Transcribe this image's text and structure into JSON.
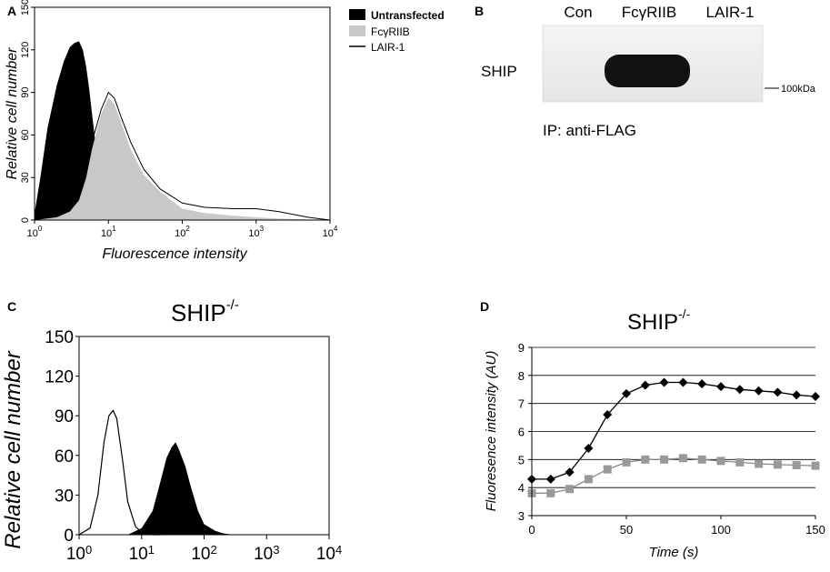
{
  "panels": {
    "a": "A",
    "b": "B",
    "c": "C",
    "d": "D"
  },
  "chart_data": [
    {
      "panel": "A",
      "type": "area",
      "xlabel": "Fluorescence intensity",
      "ylabel": "Relative cell number",
      "xscale": "log",
      "xlim": [
        1,
        10000
      ],
      "ylim": [
        0,
        150
      ],
      "xticks": [
        "10^0",
        "10^1",
        "10^2",
        "10^3",
        "10^4"
      ],
      "yticks": [
        "0",
        "30",
        "60",
        "90",
        "120",
        "150"
      ],
      "legend_position": "top-right",
      "series": [
        {
          "name": "Untransfected",
          "color": "#000000",
          "style": "filled",
          "x": [
            1,
            1.2,
            1.5,
            2,
            2.5,
            3,
            3.5,
            4,
            4.5,
            5,
            5.5,
            6,
            7,
            8,
            10,
            12
          ],
          "y": [
            5,
            30,
            65,
            95,
            112,
            122,
            125,
            126,
            120,
            108,
            92,
            75,
            45,
            22,
            6,
            0
          ]
        },
        {
          "name": "FcγRIIB",
          "color": "#c8c8c8",
          "style": "filled",
          "x": [
            1,
            2,
            3,
            4,
            5,
            6,
            8,
            10,
            12,
            15,
            20,
            30,
            50,
            100,
            200,
            500,
            1000,
            2000,
            5000,
            10000
          ],
          "y": [
            0,
            2,
            6,
            14,
            30,
            50,
            75,
            86,
            82,
            68,
            50,
            32,
            20,
            8,
            5,
            3,
            2,
            1,
            0.5,
            0
          ]
        },
        {
          "name": "LAIR-1",
          "color": "#000000",
          "style": "line",
          "x": [
            1,
            2,
            3,
            4,
            5,
            6,
            8,
            10,
            12,
            15,
            20,
            30,
            50,
            100,
            200,
            500,
            1000,
            2000,
            5000,
            10000
          ],
          "y": [
            0,
            3,
            8,
            18,
            35,
            55,
            78,
            90,
            86,
            72,
            55,
            36,
            22,
            12,
            9,
            8,
            8,
            6,
            2,
            0
          ]
        }
      ]
    },
    {
      "panel": "B",
      "type": "blot",
      "lanes": [
        "Con",
        "FcγRIIB",
        "LAIR-1"
      ],
      "row_label": "SHIP",
      "marker": "100kDa",
      "caption": "IP: anti-FLAG",
      "band_intensity": [
        0,
        1,
        0
      ]
    },
    {
      "panel": "C",
      "type": "area",
      "title": "SHIP",
      "title_sup": "-/-",
      "ylabel": "Relative cell number",
      "xscale": "log",
      "xlim": [
        1,
        10000
      ],
      "ylim": [
        0,
        150
      ],
      "xticks": [
        "10^0",
        "10^1",
        "10^2",
        "10^3",
        "10^4"
      ],
      "yticks": [
        "0",
        "30",
        "60",
        "90",
        "120",
        "150"
      ],
      "series": [
        {
          "name": "",
          "color": "#000000",
          "style": "line",
          "x": [
            1,
            1.5,
            2,
            2.5,
            3,
            3.5,
            4,
            5,
            6,
            8,
            10,
            15,
            20
          ],
          "y": [
            0,
            5,
            30,
            70,
            90,
            94,
            88,
            55,
            25,
            6,
            2,
            0,
            0
          ]
        },
        {
          "name": "",
          "color": "#000000",
          "style": "filled",
          "x": [
            6,
            10,
            15,
            20,
            25,
            30,
            35,
            40,
            50,
            60,
            80,
            100,
            150,
            200,
            300
          ],
          "y": [
            0,
            5,
            18,
            40,
            58,
            66,
            70,
            64,
            52,
            38,
            18,
            8,
            3,
            1,
            0
          ]
        }
      ]
    },
    {
      "panel": "D",
      "type": "line",
      "title": "SHIP",
      "title_sup": "-/-",
      "xlabel": "Time (s)",
      "ylabel": "Fluoresence intensity (AU)",
      "xlim": [
        0,
        150
      ],
      "ylim": [
        3,
        9
      ],
      "xticks": [
        "0",
        "50",
        "100",
        "150"
      ],
      "yticks": [
        "3",
        "4",
        "5",
        "6",
        "7",
        "8",
        "9"
      ],
      "grid": "horizontal",
      "series": [
        {
          "name": "",
          "color": "#000000",
          "marker": "diamond",
          "x": [
            0,
            10,
            20,
            30,
            40,
            50,
            60,
            70,
            80,
            90,
            100,
            110,
            120,
            130,
            140,
            150
          ],
          "y": [
            4.3,
            4.3,
            4.55,
            5.4,
            6.6,
            7.35,
            7.65,
            7.75,
            7.75,
            7.7,
            7.6,
            7.5,
            7.45,
            7.4,
            7.3,
            7.25
          ]
        },
        {
          "name": "",
          "color": "#999999",
          "marker": "square",
          "x": [
            0,
            10,
            20,
            30,
            40,
            50,
            60,
            70,
            80,
            90,
            100,
            110,
            120,
            130,
            140,
            150
          ],
          "y": [
            3.8,
            3.8,
            3.95,
            4.3,
            4.65,
            4.9,
            5.0,
            5.0,
            5.05,
            5.0,
            4.95,
            4.9,
            4.85,
            4.82,
            4.8,
            4.78
          ]
        }
      ]
    }
  ]
}
